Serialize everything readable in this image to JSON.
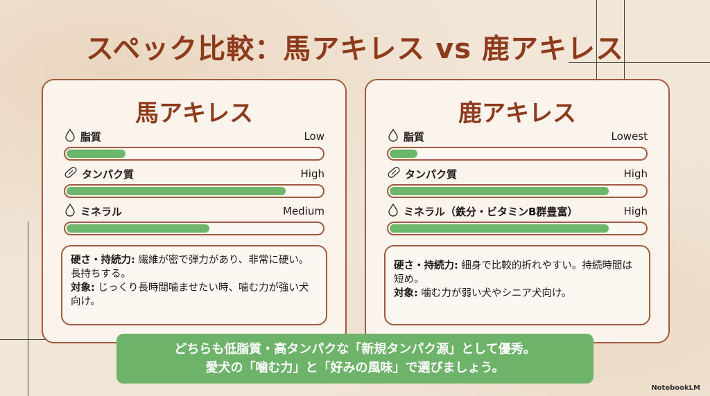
{
  "title": "スペック比較：馬アキレス vs 鹿アキレス",
  "colors": {
    "accent": "#8e3a1c",
    "border": "#a15a3c",
    "bar_fill": "#6cb76b",
    "banner": "#6db36a"
  },
  "cards": [
    {
      "title": "馬アキレス",
      "metrics": [
        {
          "icon": "droplet-icon",
          "label": "脂質",
          "value": "Low",
          "level": 0.23
        },
        {
          "icon": "capsule-icon",
          "label": "タンパク質",
          "value": "High",
          "level": 0.86
        },
        {
          "icon": "droplet-icon",
          "label": "ミネラル",
          "value": "Medium",
          "level": 0.56
        }
      ],
      "desc": {
        "k1": "硬さ・持続力:",
        "v1": "繊維が密で弾力があり、非常に硬い。長持ちする。",
        "k2": "対象:",
        "v2": "じっくり長時間噛ませたい時、噛む力が強い犬向け。"
      }
    },
    {
      "title": "鹿アキレス",
      "metrics": [
        {
          "icon": "droplet-icon",
          "label": "脂質",
          "value": "Lowest",
          "level": 0.11
        },
        {
          "icon": "capsule-icon",
          "label": "タンパク質",
          "value": "High",
          "level": 0.86
        },
        {
          "icon": "droplet-icon",
          "label": "ミネラル（鉄分・ビタミンB群豊富）",
          "value": "High",
          "level": 0.86
        }
      ],
      "desc": {
        "k1": "硬さ・持続力:",
        "v1": "細身で比較的折れやすい。持続時間は短め。",
        "k2": "対象:",
        "v2": "噛む力が弱い犬やシニア犬向け。"
      }
    }
  ],
  "banner": {
    "line1": "どちらも低脂質・高タンパクな「新規タンパク源」として優秀。",
    "line2": "愛犬の「噛む力」と「好みの風味」で選びましょう。"
  },
  "brand": "NotebookLM"
}
